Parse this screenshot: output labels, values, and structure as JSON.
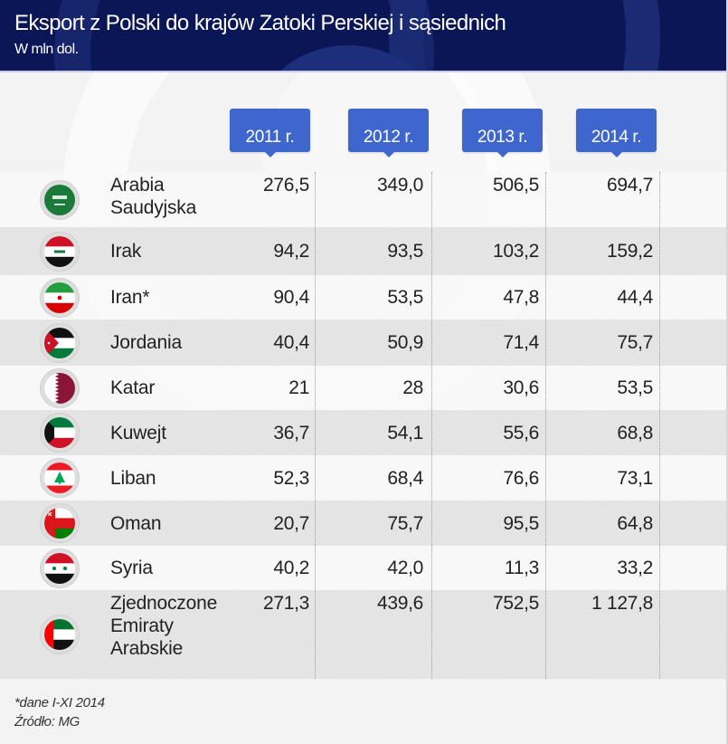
{
  "header": {
    "title": "Eksport z Polski do krajów Zatoki Perskiej i sąsiednich",
    "subtitle": "W mln dol."
  },
  "colors": {
    "header_bg": "#0b1657",
    "badge_bg": "#3f66cc",
    "row_light": "#f8f8f8",
    "row_dark": "#e6e6e6"
  },
  "chart_data": {
    "type": "table",
    "title": "Eksport z Polski do krajów Zatoki Perskiej i sąsiednich",
    "subtitle": "W mln dol.",
    "columns": [
      "2011 r.",
      "2012 r.",
      "2013 r.",
      "2014 r."
    ],
    "rows": [
      {
        "country": "Arabia Saudyjska",
        "flag": "saudi-arabia-flag-icon",
        "values": [
          "276,5",
          "349,0",
          "506,5",
          "694,7"
        ]
      },
      {
        "country": "Irak",
        "flag": "iraq-flag-icon",
        "values": [
          "94,2",
          "93,5",
          "103,2",
          "159,2"
        ]
      },
      {
        "country": "Iran*",
        "flag": "iran-flag-icon",
        "values": [
          "90,4",
          "53,5",
          "47,8",
          "44,4"
        ]
      },
      {
        "country": "Jordania",
        "flag": "jordan-flag-icon",
        "values": [
          "40,4",
          "50,9",
          "71,4",
          "75,7"
        ]
      },
      {
        "country": "Katar",
        "flag": "qatar-flag-icon",
        "values": [
          "21",
          "28",
          "30,6",
          "53,5"
        ]
      },
      {
        "country": "Kuwejt",
        "flag": "kuwait-flag-icon",
        "values": [
          "36,7",
          "54,1",
          "55,6",
          "68,8"
        ]
      },
      {
        "country": "Liban",
        "flag": "lebanon-flag-icon",
        "values": [
          "52,3",
          "68,4",
          "76,6",
          "73,1"
        ]
      },
      {
        "country": "Oman",
        "flag": "oman-flag-icon",
        "values": [
          "20,7",
          "75,7",
          "95,5",
          "64,8"
        ]
      },
      {
        "country": "Syria",
        "flag": "syria-flag-icon",
        "values": [
          "40,2",
          "42,0",
          "11,3",
          "33,2"
        ]
      },
      {
        "country": "Zjednoczone Emiraty Arabskie",
        "flag": "uae-flag-icon",
        "values": [
          "271,3",
          "439,6",
          "752,5",
          "1 127,8"
        ]
      }
    ],
    "numeric_values": [
      [
        276.5,
        349.0,
        506.5,
        694.7
      ],
      [
        94.2,
        93.5,
        103.2,
        159.2
      ],
      [
        90.4,
        53.5,
        47.8,
        44.4
      ],
      [
        40.4,
        50.9,
        71.4,
        75.7
      ],
      [
        21,
        28,
        30.6,
        53.5
      ],
      [
        36.7,
        54.1,
        55.6,
        68.8
      ],
      [
        52.3,
        68.4,
        76.6,
        73.1
      ],
      [
        20.7,
        75.7,
        95.5,
        64.8
      ],
      [
        40.2,
        42.0,
        11.3,
        33.2
      ],
      [
        271.3,
        439.6,
        752.5,
        1127.8
      ]
    ],
    "unit": "mln USD"
  },
  "table": {
    "country_lines": [
      [
        "Arabia",
        "Saudyjska"
      ],
      [
        "Irak"
      ],
      [
        "Iran*"
      ],
      [
        "Jordania"
      ],
      [
        "Katar"
      ],
      [
        "Kuwejt"
      ],
      [
        "Liban"
      ],
      [
        "Oman"
      ],
      [
        "Syria"
      ],
      [
        "Zjednoczone",
        "Emiraty",
        "Arabskie"
      ]
    ]
  },
  "footer": {
    "note": "*dane I-XI 2014",
    "source": "Źródło: MG"
  }
}
